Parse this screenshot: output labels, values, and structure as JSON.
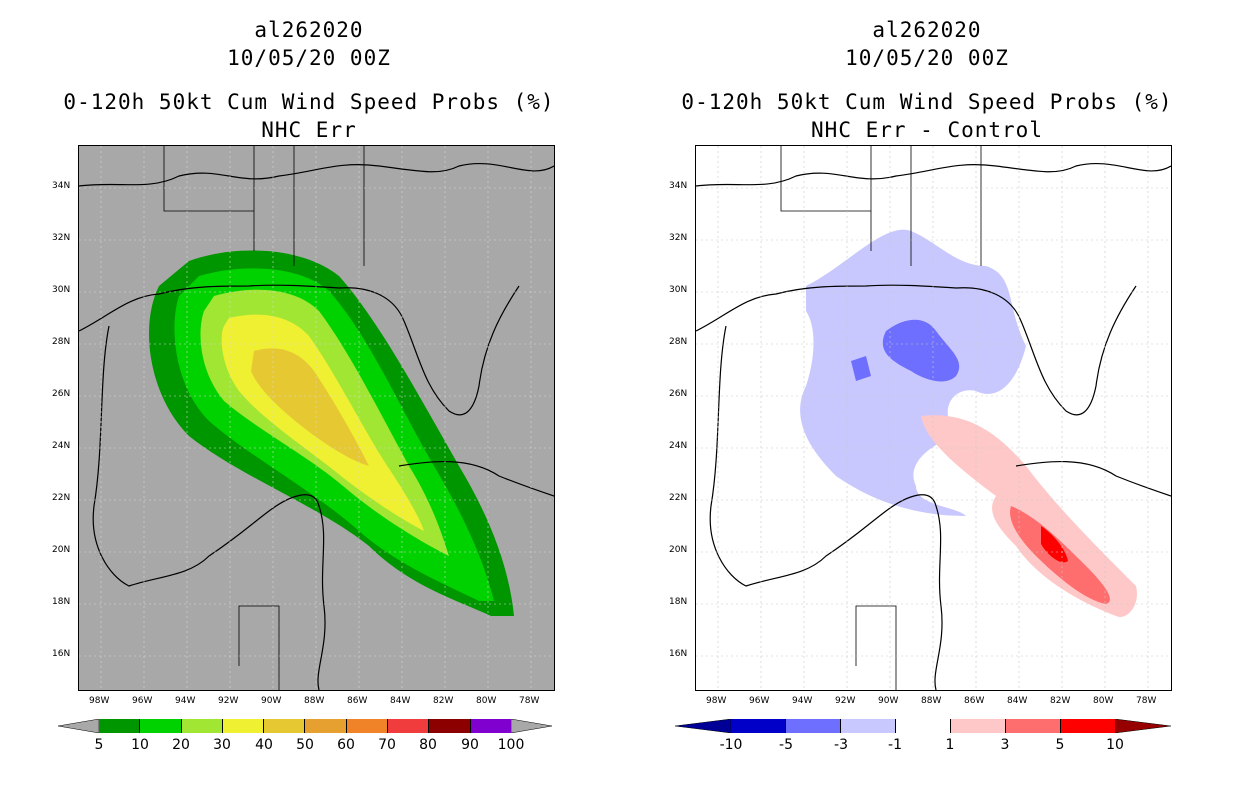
{
  "left": {
    "storm_id": "al262020",
    "datetime": "10/05/20 00Z",
    "title": "0-120h 50kt Cum Wind Speed Probs (%)",
    "subtitle": "NHC Err",
    "background_color": "#a8a8a8",
    "colorbar_colors": [
      "#009600",
      "#00d200",
      "#a0e632",
      "#f0f032",
      "#e6c832",
      "#e6a030",
      "#f08228",
      "#f03c3c",
      "#8c0000",
      "#8000d0"
    ],
    "colorbar_labels": [
      "5",
      "10",
      "20",
      "30",
      "40",
      "50",
      "60",
      "70",
      "80",
      "90",
      "100"
    ]
  },
  "right": {
    "storm_id": "al262020",
    "datetime": "10/05/20 00Z",
    "title": "0-120h 50kt Cum Wind Speed Probs (%)",
    "subtitle": "NHC Err - Control",
    "background_color": "#ffffff",
    "colorbar_colors": [
      "#0000c8",
      "#6e6eff",
      "#c8c8ff",
      "#ffffff",
      "#ffc8c8",
      "#ff6e6e",
      "#ff0000"
    ],
    "colorbar_end_low": "#000096",
    "colorbar_end_high": "#960000",
    "colorbar_labels": [
      "-10",
      "-5",
      "-3",
      "-1",
      "1",
      "3",
      "5",
      "10"
    ]
  },
  "axes": {
    "lat_labels": [
      "34N",
      "32N",
      "30N",
      "28N",
      "26N",
      "24N",
      "22N",
      "20N",
      "18N",
      "16N"
    ],
    "lon_labels": [
      "98W",
      "96W",
      "94W",
      "92W",
      "90W",
      "88W",
      "86W",
      "84W",
      "82W",
      "80W",
      "78W"
    ]
  }
}
